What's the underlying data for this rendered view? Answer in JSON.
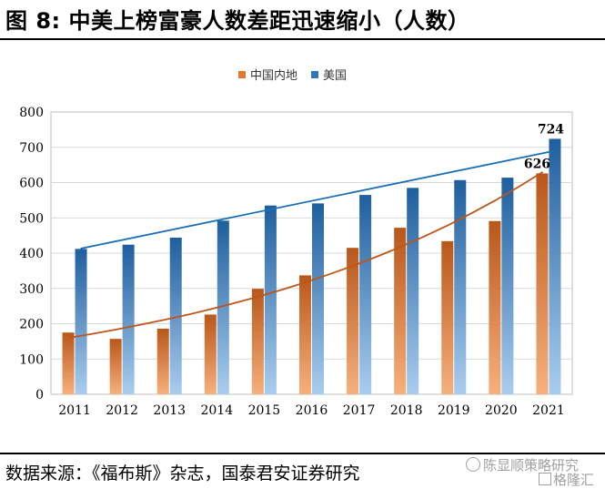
{
  "figure": {
    "title": "图 8: 中美上榜富豪人数差距迅速缩小（人数）",
    "source": "数据来源：《福布斯》杂志，国泰君安证券研究"
  },
  "watermark": {
    "line1": "陈显顺策略研究",
    "line2": "格隆汇"
  },
  "colors": {
    "china": "#e07b2a",
    "usa": "#2f77b8",
    "china_trend": "#c0551a",
    "usa_trend": "#1a6fb5"
  },
  "chart_data": {
    "type": "bar",
    "categories": [
      "2011",
      "2012",
      "2013",
      "2014",
      "2015",
      "2016",
      "2017",
      "2018",
      "2019",
      "2020",
      "2021"
    ],
    "series": [
      {
        "name": "中国内地",
        "values": [
          175,
          157,
          186,
          226,
          299,
          337,
          415,
          472,
          434,
          491,
          626
        ]
      },
      {
        "name": "美国",
        "values": [
          412,
          424,
          444,
          492,
          535,
          541,
          565,
          585,
          607,
          614,
          724
        ]
      }
    ],
    "trendlines": [
      {
        "series": "中国内地",
        "start": 160,
        "end": 630
      },
      {
        "series": "美国",
        "start": 413,
        "end": 690
      }
    ],
    "data_labels": [
      {
        "series": "中国内地",
        "category": "2021",
        "text": "626"
      },
      {
        "series": "美国",
        "category": "2021",
        "text": "724"
      }
    ],
    "ylim": [
      0,
      800
    ],
    "yticks": [
      0,
      100,
      200,
      300,
      400,
      500,
      600,
      700,
      800
    ],
    "grid": true,
    "legend_position": "top"
  }
}
